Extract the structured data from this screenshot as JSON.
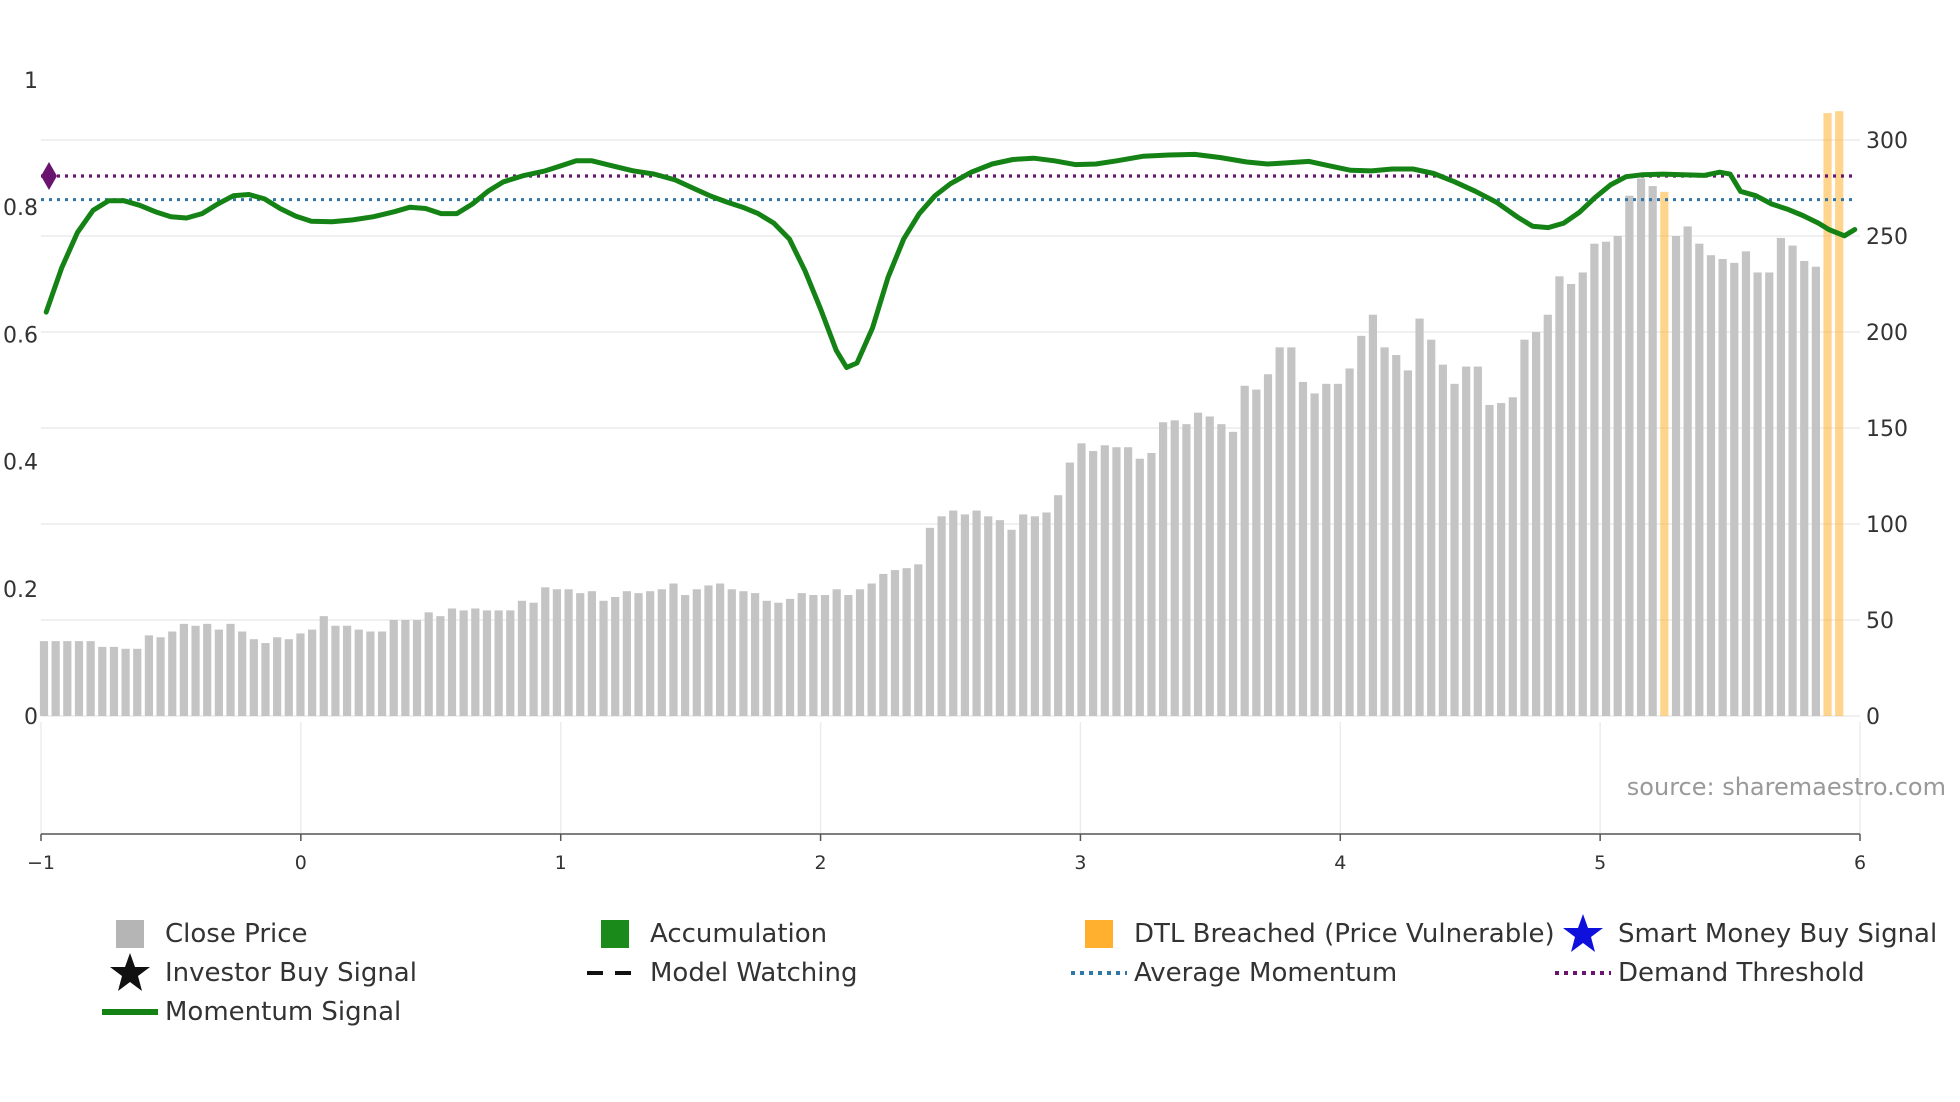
{
  "source_text": "source: sharemaestro.com",
  "colors": {
    "price": "#c4c4c4",
    "momentum": "#148214",
    "accumulation": "#1a8a1a",
    "dtl": "#ffb02e",
    "smart_money": "#1010dd",
    "avg_momentum": "#2f77a8",
    "demand_threshold": "#6a1470",
    "grid": "#ececec"
  },
  "legend": [
    {
      "key": "close",
      "label": "Close Price",
      "symbol": "square",
      "color": "#b5b5b5"
    },
    {
      "key": "accum",
      "label": "Accumulation",
      "symbol": "square",
      "color": "#1a8a1a"
    },
    {
      "key": "dtl",
      "label": "DTL Breached (Price Vulnerable)",
      "symbol": "square",
      "color": "#ffb02e"
    },
    {
      "key": "smart",
      "label": "Smart Money Buy Signal",
      "symbol": "star",
      "color": "#1010dd"
    },
    {
      "key": "investor",
      "label": "Investor Buy Signal",
      "symbol": "star",
      "color": "#111111"
    },
    {
      "key": "watch",
      "label": "Model Watching",
      "symbol": "dash",
      "color": "#111111"
    },
    {
      "key": "avg",
      "label": "Average Momentum",
      "symbol": "dots",
      "color": "#2f77a8"
    },
    {
      "key": "demand",
      "label": "Demand Threshold",
      "symbol": "dots",
      "color": "#6a1470"
    },
    {
      "key": "mom",
      "label": "Momentum Signal",
      "symbol": "line",
      "color": "#148214"
    }
  ],
  "chart_data": {
    "type": "bar",
    "x_range": [
      -1,
      6
    ],
    "x_ticks": [
      "−1",
      "0",
      "1",
      "2",
      "3",
      "4",
      "5",
      "6"
    ],
    "y_left": {
      "range": [
        0,
        1
      ],
      "ticks": [
        "0",
        "0.2",
        "0.4",
        "0.6",
        "0.8",
        "1"
      ],
      "label": ""
    },
    "y_right": {
      "range": [
        0,
        330
      ],
      "ticks": [
        "0",
        "50",
        "100",
        "150",
        "200",
        "250",
        "300"
      ],
      "label": ""
    },
    "price_start_x": -1,
    "price_step": 0.04486,
    "close_price": [
      39,
      39,
      39,
      39,
      39,
      36,
      36,
      35,
      35,
      42,
      41,
      44,
      48,
      47,
      48,
      45,
      48,
      44,
      40,
      38,
      41,
      40,
      43,
      45,
      52,
      47,
      47,
      45,
      44,
      44,
      50,
      50,
      50,
      54,
      52,
      56,
      55,
      56,
      55,
      55,
      55,
      60,
      59,
      67,
      66,
      66,
      64,
      65,
      60,
      62,
      65,
      64,
      65,
      66,
      69,
      63,
      66,
      68,
      69,
      66,
      65,
      64,
      60,
      59,
      61,
      64,
      63,
      63,
      66,
      63,
      66,
      69,
      74,
      76,
      77,
      79,
      98,
      104,
      107,
      105,
      107,
      104,
      102,
      97,
      105,
      104,
      106,
      115,
      132,
      142,
      138,
      141,
      140,
      140,
      134,
      137,
      153,
      154,
      152,
      158,
      156,
      152,
      148,
      172,
      170,
      178,
      192,
      192,
      174,
      168,
      173,
      173,
      181,
      198,
      209,
      192,
      188,
      180,
      207,
      196,
      183,
      173,
      182,
      182,
      162,
      163,
      166,
      196,
      200,
      209,
      229,
      225,
      231,
      246,
      247,
      250,
      271,
      280,
      276,
      273,
      250,
      255,
      246,
      240,
      238,
      236,
      242,
      231,
      231,
      249,
      245,
      237,
      234,
      314,
      315
    ],
    "dtl_bars": [
      139,
      153,
      154
    ],
    "momentum_signal": [
      [
        -0.98,
        0.635
      ],
      [
        -0.92,
        0.705
      ],
      [
        -0.86,
        0.76
      ],
      [
        -0.8,
        0.795
      ],
      [
        -0.74,
        0.81
      ],
      [
        -0.68,
        0.81
      ],
      [
        -0.62,
        0.803
      ],
      [
        -0.56,
        0.793
      ],
      [
        -0.5,
        0.785
      ],
      [
        -0.44,
        0.783
      ],
      [
        -0.38,
        0.79
      ],
      [
        -0.32,
        0.805
      ],
      [
        -0.26,
        0.818
      ],
      [
        -0.2,
        0.82
      ],
      [
        -0.14,
        0.813
      ],
      [
        -0.08,
        0.798
      ],
      [
        -0.02,
        0.786
      ],
      [
        0.04,
        0.778
      ],
      [
        0.12,
        0.777
      ],
      [
        0.2,
        0.78
      ],
      [
        0.28,
        0.785
      ],
      [
        0.36,
        0.793
      ],
      [
        0.42,
        0.8
      ],
      [
        0.48,
        0.798
      ],
      [
        0.54,
        0.79
      ],
      [
        0.6,
        0.79
      ],
      [
        0.66,
        0.805
      ],
      [
        0.72,
        0.825
      ],
      [
        0.78,
        0.84
      ],
      [
        0.86,
        0.85
      ],
      [
        0.94,
        0.857
      ],
      [
        1.0,
        0.865
      ],
      [
        1.06,
        0.873
      ],
      [
        1.12,
        0.873
      ],
      [
        1.2,
        0.865
      ],
      [
        1.28,
        0.857
      ],
      [
        1.36,
        0.852
      ],
      [
        1.44,
        0.843
      ],
      [
        1.52,
        0.828
      ],
      [
        1.58,
        0.817
      ],
      [
        1.64,
        0.808
      ],
      [
        1.7,
        0.8
      ],
      [
        1.76,
        0.79
      ],
      [
        1.82,
        0.775
      ],
      [
        1.88,
        0.75
      ],
      [
        1.94,
        0.7
      ],
      [
        2.0,
        0.64
      ],
      [
        2.06,
        0.575
      ],
      [
        2.1,
        0.548
      ],
      [
        2.14,
        0.555
      ],
      [
        2.2,
        0.61
      ],
      [
        2.26,
        0.69
      ],
      [
        2.32,
        0.75
      ],
      [
        2.38,
        0.79
      ],
      [
        2.44,
        0.818
      ],
      [
        2.5,
        0.837
      ],
      [
        2.58,
        0.855
      ],
      [
        2.66,
        0.868
      ],
      [
        2.74,
        0.875
      ],
      [
        2.82,
        0.877
      ],
      [
        2.9,
        0.873
      ],
      [
        2.98,
        0.867
      ],
      [
        3.06,
        0.868
      ],
      [
        3.14,
        0.873
      ],
      [
        3.24,
        0.88
      ],
      [
        3.34,
        0.882
      ],
      [
        3.44,
        0.883
      ],
      [
        3.54,
        0.878
      ],
      [
        3.64,
        0.871
      ],
      [
        3.72,
        0.868
      ],
      [
        3.8,
        0.87
      ],
      [
        3.88,
        0.872
      ],
      [
        3.96,
        0.865
      ],
      [
        4.04,
        0.858
      ],
      [
        4.12,
        0.857
      ],
      [
        4.2,
        0.86
      ],
      [
        4.28,
        0.86
      ],
      [
        4.36,
        0.853
      ],
      [
        4.44,
        0.84
      ],
      [
        4.52,
        0.825
      ],
      [
        4.6,
        0.808
      ],
      [
        4.68,
        0.785
      ],
      [
        4.74,
        0.77
      ],
      [
        4.8,
        0.768
      ],
      [
        4.86,
        0.775
      ],
      [
        4.92,
        0.792
      ],
      [
        4.98,
        0.815
      ],
      [
        5.04,
        0.835
      ],
      [
        5.1,
        0.848
      ],
      [
        5.16,
        0.851
      ],
      [
        5.24,
        0.852
      ],
      [
        5.32,
        0.851
      ],
      [
        5.4,
        0.85
      ],
      [
        5.46,
        0.855
      ],
      [
        5.5,
        0.852
      ],
      [
        5.54,
        0.825
      ],
      [
        5.6,
        0.818
      ],
      [
        5.66,
        0.805
      ],
      [
        5.72,
        0.797
      ],
      [
        5.78,
        0.787
      ],
      [
        5.84,
        0.775
      ],
      [
        5.88,
        0.765
      ],
      [
        5.94,
        0.755
      ],
      [
        5.98,
        0.765
      ]
    ],
    "average_momentum": 0.812,
    "demand_threshold": 0.849,
    "demand_marker_x": -1
  }
}
